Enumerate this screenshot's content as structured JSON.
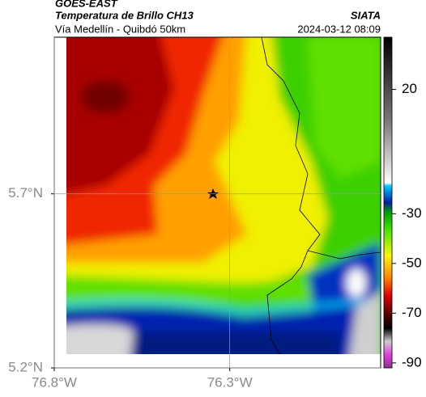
{
  "header": {
    "source": "GOES-EAST",
    "title": "Temperatura de Brillo CH13",
    "brand": "SIATA",
    "route": "Vía Medellín - Quibdó 50km",
    "timestamp": "2024-03-12 08:09"
  },
  "map": {
    "xlim": [
      -76.8,
      -75.87
    ],
    "ylim": [
      5.2,
      6.15
    ],
    "xticks": [
      {
        "value": -76.8,
        "label": "76.8°W"
      },
      {
        "value": -76.3,
        "label": "76.3°W"
      }
    ],
    "yticks": [
      {
        "value": 5.7,
        "label": "5.7°N"
      },
      {
        "value": 5.2,
        "label": "5.2°N"
      }
    ],
    "grid": true
  },
  "colorbar": {
    "lim": [
      -92,
      41
    ],
    "ticks": [
      20,
      -30,
      -50,
      -70,
      -90
    ]
  }
}
